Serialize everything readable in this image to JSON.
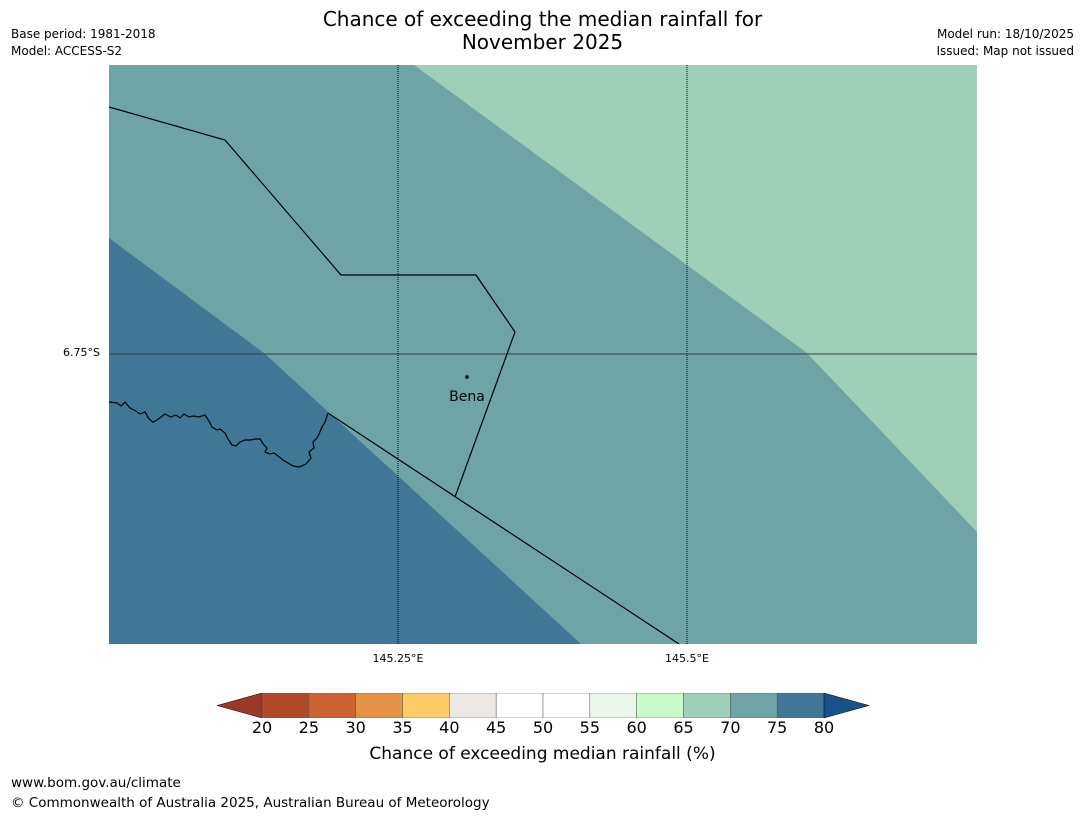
{
  "title_line1": "Chance of exceeding the median rainfall for",
  "title_line2": "November 2025",
  "meta_left": {
    "base_period": "Base period: 1981-2018",
    "model": "Model: ACCESS-S2"
  },
  "meta_right": {
    "model_run": "Model run: 18/10/2025",
    "issued": "Issued: Map not issued"
  },
  "map": {
    "place_label": "Bena",
    "lat_label": "6.75°S",
    "lon_labels": [
      "145.25°E",
      "145.5°E"
    ],
    "colors": {
      "low": "#417796",
      "mid": "#6fa4a6",
      "high": "#9ecfb8"
    }
  },
  "colorbar": {
    "ticks": [
      "20",
      "25",
      "30",
      "35",
      "40",
      "45",
      "50",
      "55",
      "60",
      "65",
      "70",
      "75",
      "80"
    ],
    "colors": [
      "#9b3a26",
      "#b14926",
      "#cc6330",
      "#e39246",
      "#ffcb66",
      "#ede8e4",
      "#ffffff",
      "#ffffff",
      "#e9f6e9",
      "#c9fbc9",
      "#9ecfb8",
      "#6fa4a6",
      "#417796",
      "#17528a"
    ],
    "label": "Chance of exceeding median rainfall (%)"
  },
  "footer": {
    "url": "www.bom.gov.au/climate",
    "copyright": "© Commonwealth of Australia 2025, Australian Bureau of Meteorology"
  }
}
